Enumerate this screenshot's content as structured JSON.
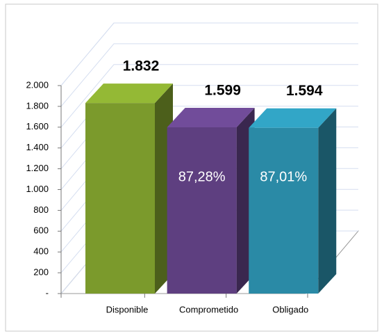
{
  "chart_data": {
    "type": "bar3d",
    "categories": [
      "Disponible",
      "Comprometido",
      "Obligado"
    ],
    "values": [
      1832,
      1599,
      1594
    ],
    "value_labels": [
      "1.832",
      "1.599",
      "1.594"
    ],
    "percent_values": [
      null,
      87.28,
      87.01
    ],
    "percent_labels": [
      null,
      "87,28%",
      "87,01%"
    ],
    "colors": [
      "#7b9a2c",
      "#5e3f80",
      "#2a8aa6"
    ],
    "ylim": [
      0,
      2000
    ],
    "yticks": [
      {
        "value": 0,
        "label": "-"
      },
      200,
      400,
      600,
      800,
      {
        "value": 1000,
        "label": "1.000"
      },
      {
        "value": 1200,
        "label": "1.200"
      },
      {
        "value": 1400,
        "label": "1.400"
      },
      {
        "value": 1600,
        "label": "1.600"
      },
      {
        "value": 1800,
        "label": "1.800"
      },
      {
        "value": 2000,
        "label": "2.000"
      }
    ],
    "grid": true
  }
}
